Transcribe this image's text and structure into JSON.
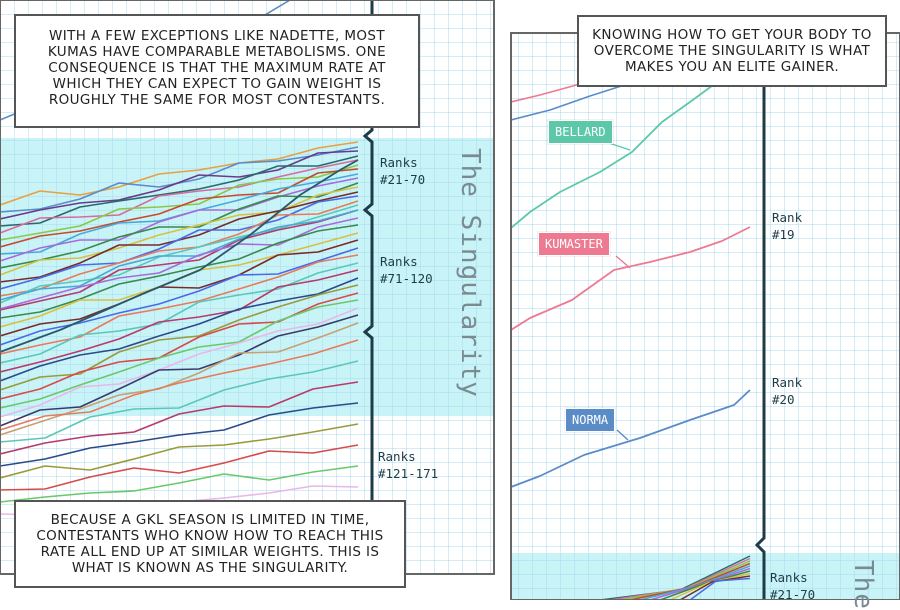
{
  "panel_left": {
    "caption_top": "With a few exceptions like Nadette, most Kumas have comparable metabolisms. One consequence is that the maximum rate at which they can expect to gain weight is roughly the same for most contestants.",
    "caption_bottom": "Because a GKL season is limited in time, contestants who know how to reach this rate all end up at similar weights. This is what is known as the singularity.",
    "zone_label": "The Singularity",
    "rank_labels": [
      "Ranks\n#21-70",
      "Ranks\n#71-120",
      "Ranks\n#121-171"
    ]
  },
  "panel_right": {
    "caption_top": "Knowing how to get your body to overcome the singularity is what makes you an elite gainer.",
    "zone_label": "The",
    "rank_labels": [
      "Rank\n#19",
      "Rank\n#20",
      "Ranks\n#21-70"
    ],
    "tags": [
      {
        "name": "BELLARD",
        "color": "#5cc8a8"
      },
      {
        "name": "KUMASTER",
        "color": "#ee7a92"
      },
      {
        "name": "NORMA",
        "color": "#5a8cc8"
      }
    ]
  },
  "colors": {
    "grid": "#a8d8ee",
    "singularity_band": "#c8f4f8",
    "bracket": "#1e3c48"
  }
}
